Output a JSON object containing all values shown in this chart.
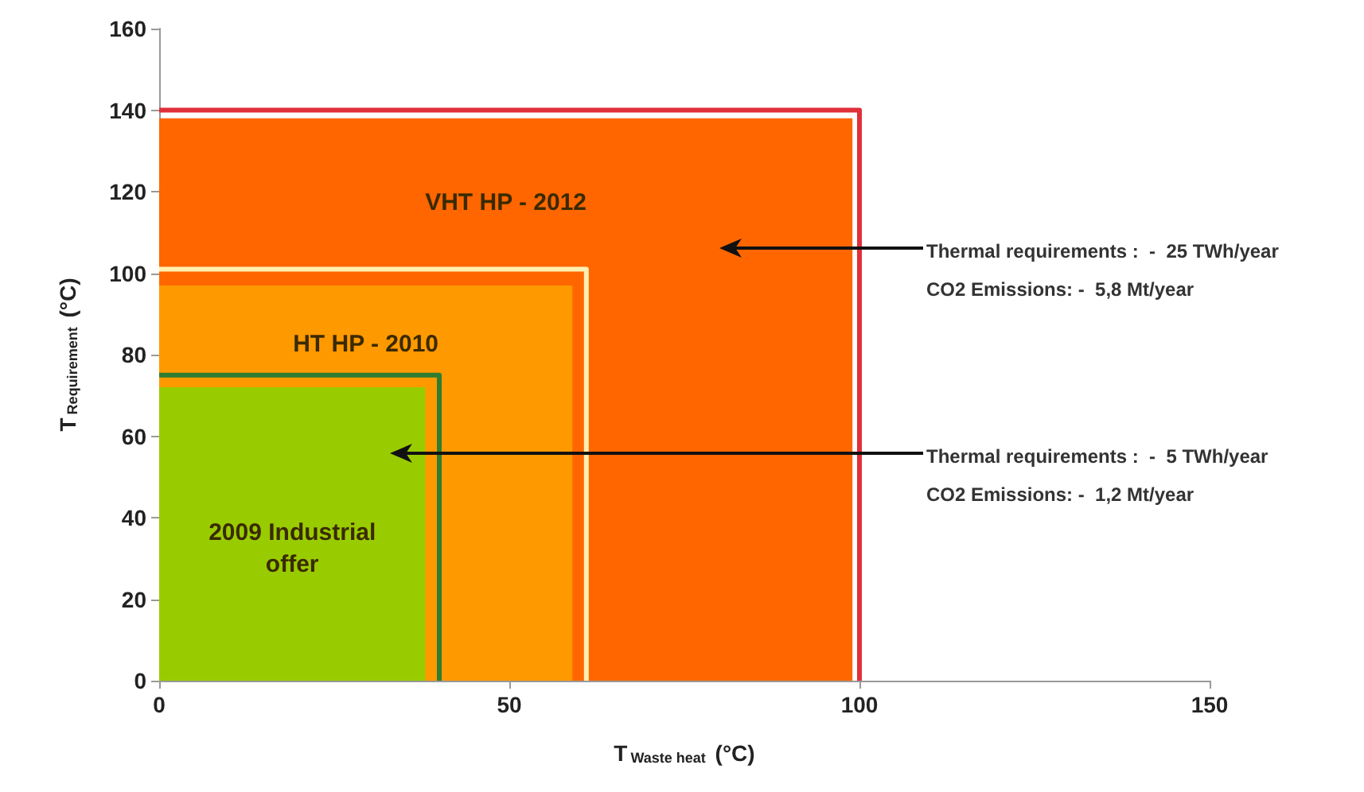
{
  "chart_data": {
    "type": "area",
    "xlabel": "T$_{Waste heat}$ (°C)",
    "ylabel": "T$_{Requirement}$ (°C)",
    "xlim": [
      0,
      150
    ],
    "xticks": [
      0,
      50,
      100,
      150
    ],
    "ylim": [
      0,
      160
    ],
    "yticks": [
      0,
      20,
      40,
      60,
      80,
      100,
      120,
      140,
      160
    ],
    "grid": false,
    "legend": false,
    "series": [
      {
        "type": "line",
        "color": "#e0303a",
        "x": [
          0,
          100,
          100
        ],
        "values": [
          140,
          140,
          0
        ]
      },
      {
        "name": "VHT HP - 2012",
        "color": "#ff6600",
        "x": [
          0,
          99
        ],
        "values": [
          138,
          138
        ]
      },
      {
        "type": "line",
        "color": "#fff0b0",
        "x": [
          0,
          61,
          61
        ],
        "values": [
          101,
          101,
          0
        ]
      },
      {
        "name": "HT HP - 2010",
        "color": "#ff9900",
        "x": [
          0,
          59
        ],
        "values": [
          97,
          97
        ]
      },
      {
        "type": "line",
        "color": "#2e7d32",
        "x": [
          0,
          40,
          40
        ],
        "values": [
          75,
          75,
          0
        ]
      },
      {
        "name": "2009 Industrial\noffer",
        "color": "#99cc00",
        "x": [
          0,
          38
        ],
        "values": [
          72,
          72
        ]
      }
    ],
    "annotations": [
      "Thermal requirements :  -  25 TWh/year\nCO2 Emissions: -  5,8 Mt/year",
      "Thermal requirements :  -  5 TWh/year\nCO2 Emissions: -  1,2 Mt/year"
    ]
  }
}
